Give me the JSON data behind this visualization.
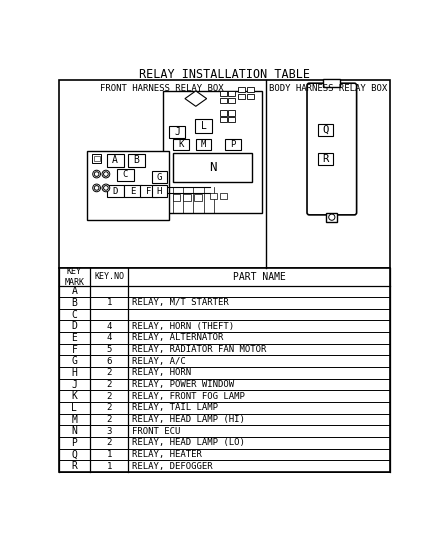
{
  "title": "RELAY INSTALLATION TABLE",
  "title_fontsize": 8.5,
  "header_row": [
    "KEY\nMARK",
    "KEY.NO",
    "PART NAME"
  ],
  "rows": [
    [
      "A",
      "",
      ""
    ],
    [
      "B",
      "1",
      "RELAY, M/T STARTER"
    ],
    [
      "C",
      "",
      ""
    ],
    [
      "D",
      "4",
      "RELAY, HORN (THEFT)"
    ],
    [
      "E",
      "4",
      "RELAY, ALTERNATOR"
    ],
    [
      "F",
      "5",
      "RELAY, RADIATOR FAN MOTOR"
    ],
    [
      "G",
      "6",
      "RELAY, A/C"
    ],
    [
      "H",
      "2",
      "RELAY, HORN"
    ],
    [
      "J",
      "2",
      "RELAY, POWER WINDOW"
    ],
    [
      "K",
      "2",
      "RELAY, FRONT FOG LAMP"
    ],
    [
      "L",
      "2",
      "RELAY, TAIL LAMP"
    ],
    [
      "M",
      "2",
      "RELAY, HEAD LAMP (HI)"
    ],
    [
      "N",
      "3",
      "FRONT ECU"
    ],
    [
      "P",
      "2",
      "RELAY, HEAD LAMP (LO)"
    ],
    [
      "Q",
      "1",
      "RELAY, HEATER"
    ],
    [
      "R",
      "1",
      "RELAY, DEFOGGER"
    ]
  ],
  "front_box_label": "FRONT HARNESS RELAY BOX",
  "body_box_label": "BODY HARNESS RELAY BOX",
  "bg_color": "#ffffff",
  "line_color": "#000000",
  "font_color": "#000000"
}
